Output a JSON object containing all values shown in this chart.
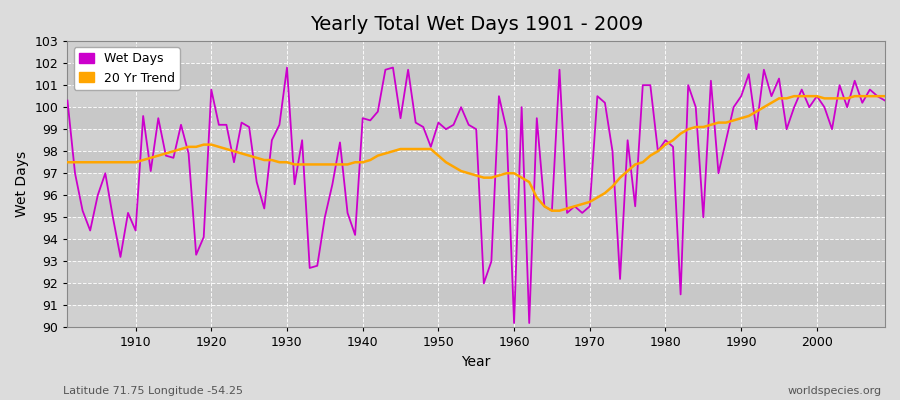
{
  "title": "Yearly Total Wet Days 1901 - 2009",
  "xlabel": "Year",
  "ylabel": "Wet Days",
  "xlim": [
    1901,
    2009
  ],
  "ylim": [
    90,
    103
  ],
  "yticks": [
    90,
    91,
    92,
    93,
    94,
    95,
    96,
    97,
    98,
    99,
    100,
    101,
    102,
    103
  ],
  "xticks": [
    1910,
    1920,
    1930,
    1940,
    1950,
    1960,
    1970,
    1980,
    1990,
    2000
  ],
  "bg_color": "#dcdcdc",
  "plot_bg_color": "#dcdcdc",
  "wet_days_color": "#cc00cc",
  "trend_color": "#ffa500",
  "wet_days_label": "Wet Days",
  "trend_label": "20 Yr Trend",
  "footer_left": "Latitude 71.75 Longitude -54.25",
  "footer_right": "worldspecies.org",
  "years": [
    1901,
    1902,
    1903,
    1904,
    1905,
    1906,
    1907,
    1908,
    1909,
    1910,
    1911,
    1912,
    1913,
    1914,
    1915,
    1916,
    1917,
    1918,
    1919,
    1920,
    1921,
    1922,
    1923,
    1924,
    1925,
    1926,
    1927,
    1928,
    1929,
    1930,
    1931,
    1932,
    1933,
    1934,
    1935,
    1936,
    1937,
    1938,
    1939,
    1940,
    1941,
    1942,
    1943,
    1944,
    1945,
    1946,
    1947,
    1948,
    1949,
    1950,
    1951,
    1952,
    1953,
    1954,
    1955,
    1956,
    1957,
    1958,
    1959,
    1960,
    1961,
    1962,
    1963,
    1964,
    1965,
    1966,
    1967,
    1968,
    1969,
    1970,
    1971,
    1972,
    1973,
    1974,
    1975,
    1976,
    1977,
    1978,
    1979,
    1980,
    1981,
    1982,
    1983,
    1984,
    1985,
    1986,
    1987,
    1988,
    1989,
    1990,
    1991,
    1992,
    1993,
    1994,
    1995,
    1996,
    1997,
    1998,
    1999,
    2000,
    2001,
    2002,
    2003,
    2004,
    2005,
    2006,
    2007,
    2008,
    2009
  ],
  "wet_days": [
    100.3,
    97.0,
    95.3,
    94.4,
    96.0,
    97.0,
    95.0,
    93.2,
    95.2,
    94.4,
    99.6,
    97.1,
    99.5,
    97.8,
    97.7,
    99.2,
    97.9,
    93.3,
    94.1,
    100.8,
    99.2,
    99.2,
    97.5,
    99.3,
    99.1,
    96.6,
    95.4,
    98.5,
    99.2,
    101.8,
    96.5,
    98.5,
    92.7,
    92.8,
    95.0,
    96.5,
    98.4,
    95.2,
    94.2,
    99.5,
    99.4,
    99.8,
    101.7,
    101.8,
    99.5,
    101.7,
    99.3,
    99.1,
    98.2,
    99.3,
    99.0,
    99.2,
    100.0,
    99.2,
    99.0,
    92.0,
    93.0,
    100.5,
    99.0,
    90.2,
    100.0,
    90.2,
    99.5,
    95.5,
    95.3,
    101.7,
    95.2,
    95.5,
    95.2,
    95.5,
    100.5,
    100.2,
    98.0,
    92.2,
    98.5,
    95.5,
    101.0,
    101.0,
    98.0,
    98.5,
    98.2,
    91.5,
    101.0,
    100.0,
    95.0,
    101.2,
    97.0,
    98.5,
    100.0,
    100.5,
    101.5,
    99.0,
    101.7,
    100.5,
    101.3,
    99.0,
    100.0,
    100.8,
    100.0,
    100.5,
    100.0,
    99.0,
    101.0,
    100.0,
    101.2,
    100.2,
    100.8,
    100.5,
    100.3
  ],
  "trend_years": [
    1901,
    1902,
    1903,
    1904,
    1905,
    1906,
    1907,
    1908,
    1909,
    1910,
    1911,
    1912,
    1913,
    1914,
    1915,
    1916,
    1917,
    1918,
    1919,
    1920,
    1921,
    1922,
    1923,
    1924,
    1925,
    1926,
    1927,
    1928,
    1929,
    1930,
    1931,
    1932,
    1933,
    1934,
    1935,
    1936,
    1937,
    1938,
    1939,
    1940,
    1941,
    1942,
    1943,
    1944,
    1945,
    1946,
    1947,
    1948,
    1949,
    1950,
    1951,
    1952,
    1953,
    1954,
    1955,
    1956,
    1957,
    1958,
    1959,
    1960,
    1961,
    1962,
    1963,
    1964,
    1965,
    1966,
    1967,
    1968,
    1969,
    1970,
    1971,
    1972,
    1973,
    1974,
    1975,
    1976,
    1977,
    1978,
    1979,
    1980,
    1981,
    1982,
    1983,
    1984,
    1985,
    1986,
    1987,
    1988,
    1989,
    1990,
    1991,
    1992,
    1993,
    1994,
    1995,
    1996,
    1997,
    1998,
    1999,
    2000,
    2001,
    2002,
    2003,
    2004,
    2005,
    2006,
    2007,
    2008,
    2009
  ],
  "trend_values": [
    97.5,
    97.5,
    97.5,
    97.5,
    97.5,
    97.5,
    97.5,
    97.5,
    97.5,
    97.5,
    97.6,
    97.7,
    97.8,
    97.9,
    98.0,
    98.1,
    98.2,
    98.2,
    98.3,
    98.3,
    98.2,
    98.1,
    98.0,
    97.9,
    97.8,
    97.7,
    97.6,
    97.6,
    97.5,
    97.5,
    97.4,
    97.4,
    97.4,
    97.4,
    97.4,
    97.4,
    97.4,
    97.4,
    97.5,
    97.5,
    97.6,
    97.8,
    97.9,
    98.0,
    98.1,
    98.1,
    98.1,
    98.1,
    98.1,
    97.8,
    97.5,
    97.3,
    97.1,
    97.0,
    96.9,
    96.8,
    96.8,
    96.9,
    97.0,
    97.0,
    96.8,
    96.6,
    95.9,
    95.5,
    95.3,
    95.3,
    95.4,
    95.5,
    95.6,
    95.7,
    95.9,
    96.1,
    96.4,
    96.8,
    97.1,
    97.4,
    97.5,
    97.8,
    98.0,
    98.3,
    98.5,
    98.8,
    99.0,
    99.1,
    99.1,
    99.2,
    99.3,
    99.3,
    99.4,
    99.5,
    99.6,
    99.8,
    100.0,
    100.2,
    100.4,
    100.4,
    100.5,
    100.5,
    100.5,
    100.5,
    100.4,
    100.4,
    100.4,
    100.4,
    100.5,
    100.5,
    100.5,
    100.5,
    100.5
  ]
}
